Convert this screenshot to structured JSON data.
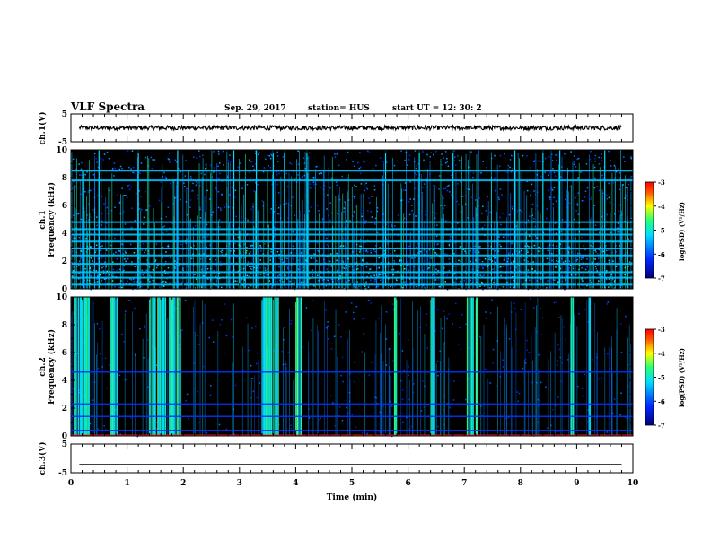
{
  "header": {
    "title": "VLF Spectra",
    "date": "Sep. 29, 2017",
    "station": "station= HUS",
    "start_time": "start  UT =   12: 30: 2"
  },
  "colors": {
    "background": "#ffffff",
    "spectrogram_bg": "#000000",
    "trace": "#000000"
  },
  "chart_data": [
    {
      "id": "ch1-voltage",
      "type": "line",
      "ylabel": "ch.1(V)",
      "ylim": [
        -5,
        5
      ],
      "yticks": [
        "5",
        "-5"
      ],
      "xlim": [
        0,
        10
      ],
      "series": [
        {
          "values_note_free": true,
          "level": 0.0,
          "noise": 0.8
        }
      ]
    },
    {
      "id": "ch1-spectrogram",
      "type": "heatmap",
      "ylabel_top": "ch.1",
      "ylabel": "Frequency (kHz)",
      "ylim": [
        0,
        10
      ],
      "yticks": [
        "0",
        "2",
        "4",
        "6",
        "8",
        "10"
      ],
      "xlim": [
        0,
        10
      ],
      "colorbar_label": "log(PSD) (V²/Hz)",
      "colorbar_ticks": [
        "-3",
        "-4",
        "-5",
        "-6",
        "-7"
      ],
      "colorbar_range": [
        -7,
        -3
      ],
      "horizontal_bands_khz": [
        0.3,
        0.8,
        1.2,
        1.8,
        2.4,
        2.9,
        3.4,
        3.9,
        4.3,
        4.8,
        7.8,
        8.5
      ],
      "impulse_times_min": [
        0.5,
        1.2,
        1.9,
        2.9,
        3.3,
        3.6,
        3.8,
        4.2,
        5.6,
        6.2,
        6.8,
        7.1,
        7.9,
        8.4,
        8.7,
        9.5
      ]
    },
    {
      "id": "ch2-spectrogram",
      "type": "heatmap",
      "ylabel_top": "ch.2",
      "ylabel": "Frequency (kHz)",
      "ylim": [
        0,
        10
      ],
      "yticks": [
        "0",
        "2",
        "4",
        "6",
        "8",
        "10"
      ],
      "xlim": [
        0,
        10
      ],
      "colorbar_label": "log(PSD) (V²/Hz)",
      "colorbar_ticks": [
        "-3",
        "-4",
        "-5",
        "-6",
        "-7"
      ],
      "colorbar_range": [
        -7,
        -3
      ],
      "horizontal_bands_khz": [
        0.4,
        1.4,
        2.3,
        4.6
      ],
      "burst_times_min": [
        [
          0.05,
          0.35
        ],
        [
          0.7,
          0.85
        ],
        [
          1.4,
          1.7
        ],
        [
          1.75,
          1.95
        ],
        [
          3.4,
          3.7
        ],
        [
          4.0,
          4.1
        ],
        [
          5.75,
          5.8
        ],
        [
          6.4,
          6.5
        ],
        [
          7.05,
          7.25
        ],
        [
          8.9,
          8.95
        ],
        [
          9.2,
          9.25
        ]
      ]
    },
    {
      "id": "ch3-voltage",
      "type": "line",
      "ylabel": "ch.3(V)",
      "ylim": [
        -5,
        5
      ],
      "yticks": [
        "5",
        "-5"
      ],
      "xlim": [
        0,
        10
      ],
      "xlabel": "Time  (min)",
      "xticks": [
        "0",
        "1",
        "2",
        "3",
        "4",
        "5",
        "6",
        "7",
        "8",
        "9",
        "10"
      ],
      "series": [
        {
          "level": -2.0,
          "noise": 0.0
        }
      ]
    }
  ]
}
